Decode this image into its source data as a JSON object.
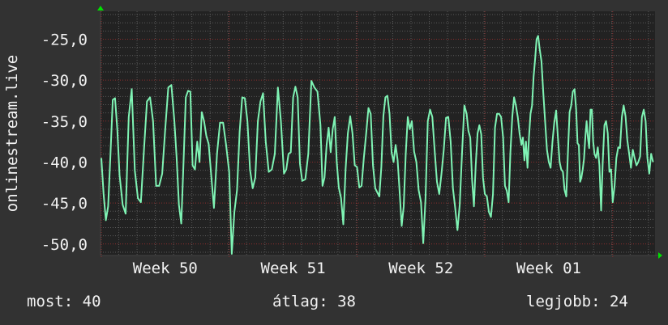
{
  "chart_data": {
    "type": "line",
    "title": "",
    "ylabel": "onlinestream.live",
    "xlabel": "",
    "ylim": [
      -51.4,
      -21.6
    ],
    "y_ticks": [
      -25,
      -30,
      -35,
      -40,
      -45,
      -50
    ],
    "y_tick_labels": [
      "-25,0",
      "-30,0",
      "-35,0",
      "-40,0",
      "-45,0",
      "-50,0"
    ],
    "x_tick_labels": [
      "Week 50",
      "Week 51",
      "Week 52",
      "Week 01"
    ],
    "grid": true,
    "series_color": "#7ff3b4",
    "background_color": "#323232",
    "plot_color": "#222222",
    "major_grid_color": "#8a2c2c",
    "minor_grid_color": "#5a5a5a",
    "arrow_color": "#00e000",
    "daily_values": [
      [
        -39.5,
        -43.9,
        -47.1,
        -45.4,
        -39,
        -32.4,
        -32.2,
        -36
      ],
      [
        -41.6,
        -45.2,
        -46.3,
        -34.5,
        -31.1,
        -41
      ],
      [
        -44.4,
        -44.9,
        -38.5,
        -32.6,
        -32.1,
        -35
      ],
      [
        -42.9,
        -42.9,
        -41.4,
        -36,
        -30.9,
        -30.6
      ],
      [
        -35,
        -39.5,
        -45.2,
        -47.5,
        -40,
        -32.1,
        -31.3,
        -31.4
      ],
      [
        -40.4,
        -40.9,
        -37.5,
        -40,
        -33.9,
        -35,
        -36.8,
        -37.8
      ],
      [
        -41.2,
        -45.6,
        -39,
        -35.2,
        -35.2,
        -37.9
      ],
      [
        -41.2,
        -51.2,
        -46.1,
        -43.4,
        -36.3,
        -32.1,
        -32.2
      ],
      [
        -35,
        -40.9,
        -43.2,
        -41.9,
        -35,
        -32.6,
        -31.6
      ],
      [
        -37.5,
        -41.2,
        -40.9,
        -39,
        -30.9,
        -35
      ],
      [
        -41.4,
        -40.9,
        -39,
        -38.8,
        -32.1,
        -30.8,
        -32.1,
        -40.2
      ],
      [
        -42.3,
        -42.1,
        -39,
        -30.1,
        -30.9,
        -31.4
      ],
      [
        -35.5,
        -42.9,
        -41.9,
        -37.9,
        -35.8,
        -38.8,
        -36,
        -34.5,
        -40
      ],
      [
        -43.1,
        -44.4,
        -47.6,
        -40.9,
        -36.5,
        -34.4,
        -36.5,
        -40.4
      ],
      [
        -40.6,
        -43.1,
        -42.9,
        -39.5,
        -36.5,
        -33.4,
        -34.1,
        -40.4
      ],
      [
        -43.2,
        -43.7,
        -44.2,
        -40.6,
        -34.4,
        -32.1,
        -31.9,
        -34.1,
        -38.8
      ],
      [
        -40,
        -37.9,
        -39.8,
        -43.7,
        -47.8,
        -45.4,
        -39,
        -34.5,
        -36
      ],
      [
        -35,
        -38.7,
        -40,
        -43.4,
        -44.9,
        -49.9,
        -44.4,
        -35
      ],
      [
        -33.6,
        -34.5,
        -38.5,
        -42.4,
        -43.9,
        -41.4,
        -38.5,
        -34.6
      ],
      [
        -34.5,
        -37.5,
        -43.2,
        -45.6,
        -48.3,
        -45.2,
        -39,
        -33.1
      ],
      [
        -34.1,
        -36.2,
        -37,
        -42.1,
        -45.4,
        -40.4,
        -36.5,
        -35.5,
        -36.6,
        -41.9
      ],
      [
        -43.9,
        -44.2,
        -46.1,
        -46.7,
        -43.9,
        -35.8,
        -34.1,
        -34.1,
        -34.5
      ],
      [
        -37,
        -42.9,
        -43.5,
        -44.9,
        -38.8,
        -34.5,
        -32.1,
        -33.1,
        -34.5,
        -36.5
      ],
      [
        -37.9,
        -37,
        -39.8,
        -37.5,
        -40.7,
        -37,
        -34.1,
        -33.1,
        -29.6,
        -27.4,
        -25,
        -24.6
      ],
      [
        -26.2,
        -27.7,
        -31.6,
        -35,
        -38.5,
        -40,
        -40.7,
        -37.5,
        -35.2,
        -33.7
      ],
      [
        -37,
        -40,
        -40.9,
        -41.2,
        -43.4,
        -44.2,
        -39,
        -33.9,
        -33.1,
        -31.4,
        -31.1
      ],
      [
        -33.6,
        -37.7,
        -37.9,
        -42.4,
        -41.9,
        -40.9,
        -39.6,
        -37,
        -35,
        -37,
        -38.3,
        -33.6,
        -33.6,
        -37.5
      ],
      [
        -39,
        -39.5,
        -38.2,
        -40.4,
        -45.9,
        -40,
        -35.5,
        -35,
        -36.5,
        -41.2,
        -40.9
      ],
      [
        -44.9,
        -42.9,
        -39.5,
        -38.2,
        -38.3,
        -34.5,
        -33.1,
        -34.4,
        -37.3,
        -39
      ],
      [
        -40.7,
        -38.5,
        -39.5,
        -40.4,
        -40,
        -39.3,
        -34.5,
        -33.6,
        -35,
        -39.5
      ],
      [
        -41.4,
        -39,
        -40
      ]
    ]
  },
  "legend": {
    "current": "most: 40",
    "average": "átlag: 38",
    "max": "legjobb: 24"
  }
}
